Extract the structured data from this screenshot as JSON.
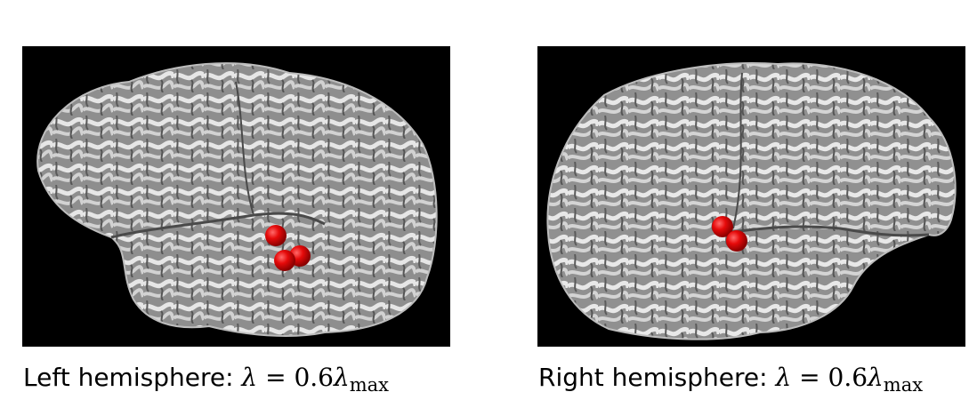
{
  "panels": [
    {
      "caption_text": "Left hemisphere:",
      "lambda_symbol": "λ",
      "equals": "=",
      "coefficient": "0.6",
      "lambda_symbol_2": "λ",
      "subscript": "max",
      "marker_color": "#e60a0a",
      "marker_count": 3
    },
    {
      "caption_text": "Right hemisphere:",
      "lambda_symbol": "λ",
      "equals": "=",
      "coefficient": "0.6",
      "lambda_symbol_2": "λ",
      "subscript": "max",
      "marker_color": "#e60a0a",
      "marker_count": 2
    }
  ],
  "colors": {
    "background": "#000000",
    "cortex": "#9a9a9a"
  }
}
